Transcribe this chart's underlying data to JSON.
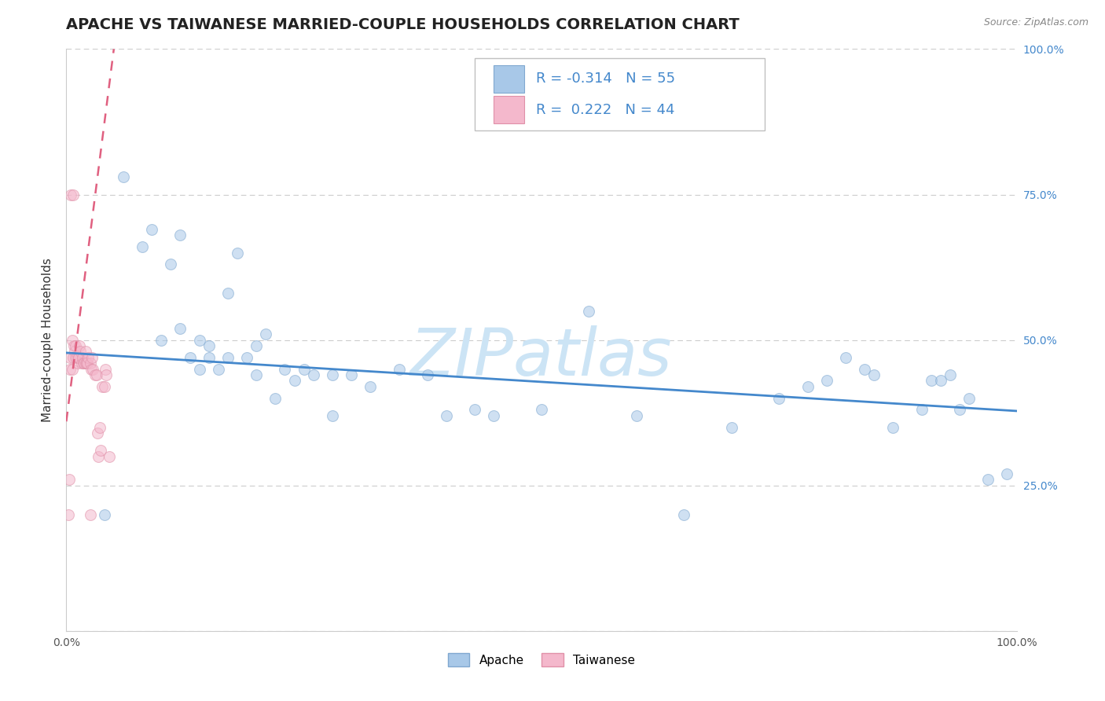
{
  "title": "APACHE VS TAIWANESE MARRIED-COUPLE HOUSEHOLDS CORRELATION CHART",
  "source": "Source: ZipAtlas.com",
  "ylabel": "Married-couple Households",
  "xlim": [
    0,
    1
  ],
  "ylim": [
    0,
    1
  ],
  "xticks": [
    0.0,
    0.25,
    0.5,
    0.75,
    1.0
  ],
  "xticklabels": [
    "0.0%",
    "",
    "",
    "",
    "100.0%"
  ],
  "yticks": [
    0.0,
    0.25,
    0.5,
    0.75,
    1.0
  ],
  "yticklabels": [
    "",
    "25.0%",
    "50.0%",
    "75.0%",
    "100.0%"
  ],
  "apache_color": "#a8c8e8",
  "apache_edge": "#80a8d0",
  "taiwanese_color": "#f4b8cc",
  "taiwanese_edge": "#e090a8",
  "trend_apache_color": "#4488cc",
  "trend_taiwanese_color": "#e06080",
  "apache_R": -0.314,
  "apache_N": 55,
  "taiwanese_R": 0.222,
  "taiwanese_N": 44,
  "watermark": "ZIPatlas",
  "apache_x": [
    0.04,
    0.06,
    0.08,
    0.09,
    0.1,
    0.11,
    0.12,
    0.12,
    0.13,
    0.14,
    0.14,
    0.15,
    0.15,
    0.16,
    0.17,
    0.17,
    0.18,
    0.19,
    0.2,
    0.2,
    0.21,
    0.22,
    0.23,
    0.24,
    0.25,
    0.26,
    0.28,
    0.28,
    0.3,
    0.32,
    0.35,
    0.38,
    0.4,
    0.43,
    0.45,
    0.5,
    0.55,
    0.6,
    0.65,
    0.7,
    0.75,
    0.78,
    0.8,
    0.82,
    0.84,
    0.85,
    0.87,
    0.9,
    0.91,
    0.92,
    0.93,
    0.94,
    0.95,
    0.97,
    0.99
  ],
  "apache_y": [
    0.2,
    0.78,
    0.66,
    0.69,
    0.5,
    0.63,
    0.68,
    0.52,
    0.47,
    0.5,
    0.45,
    0.49,
    0.47,
    0.45,
    0.58,
    0.47,
    0.65,
    0.47,
    0.49,
    0.44,
    0.51,
    0.4,
    0.45,
    0.43,
    0.45,
    0.44,
    0.44,
    0.37,
    0.44,
    0.42,
    0.45,
    0.44,
    0.37,
    0.38,
    0.37,
    0.38,
    0.55,
    0.37,
    0.2,
    0.35,
    0.4,
    0.42,
    0.43,
    0.47,
    0.45,
    0.44,
    0.35,
    0.38,
    0.43,
    0.43,
    0.44,
    0.38,
    0.4,
    0.26,
    0.27
  ],
  "taiwanese_x": [
    0.002,
    0.003,
    0.004,
    0.004,
    0.005,
    0.006,
    0.006,
    0.007,
    0.007,
    0.008,
    0.009,
    0.01,
    0.01,
    0.011,
    0.012,
    0.013,
    0.013,
    0.014,
    0.015,
    0.016,
    0.017,
    0.018,
    0.019,
    0.02,
    0.02,
    0.021,
    0.022,
    0.023,
    0.025,
    0.025,
    0.026,
    0.027,
    0.028,
    0.03,
    0.032,
    0.033,
    0.034,
    0.035,
    0.036,
    0.038,
    0.04,
    0.041,
    0.042,
    0.045
  ],
  "taiwanese_y": [
    0.2,
    0.26,
    0.47,
    0.45,
    0.75,
    0.5,
    0.45,
    0.47,
    0.75,
    0.49,
    0.48,
    0.49,
    0.47,
    0.47,
    0.46,
    0.47,
    0.47,
    0.49,
    0.48,
    0.46,
    0.47,
    0.46,
    0.46,
    0.46,
    0.48,
    0.46,
    0.46,
    0.47,
    0.46,
    0.2,
    0.45,
    0.47,
    0.45,
    0.44,
    0.44,
    0.34,
    0.3,
    0.35,
    0.31,
    0.42,
    0.42,
    0.45,
    0.44,
    0.3
  ],
  "background_color": "#ffffff",
  "grid_color": "#cccccc",
  "title_fontsize": 14,
  "ylabel_fontsize": 11,
  "tick_fontsize": 10,
  "legend_fontsize": 13,
  "watermark_fontsize": 60,
  "watermark_color": "#cce4f5",
  "dot_size": 100,
  "dot_alpha": 0.55,
  "apache_trend_x0": 0.0,
  "apache_trend_x1": 1.0,
  "apache_trend_y0": 0.478,
  "apache_trend_y1": 0.378,
  "taiwanese_trend_x0": 0.0,
  "taiwanese_trend_x1": 0.05,
  "taiwanese_trend_y0": 0.36,
  "taiwanese_trend_y1": 1.0
}
